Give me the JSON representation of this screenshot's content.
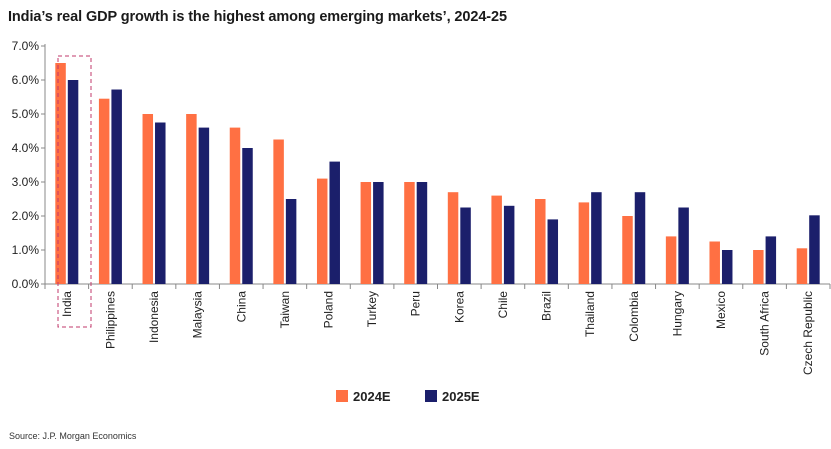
{
  "title": "India’s real GDP growth is the highest among emerging markets’, 2024-25",
  "source": "Source: J.P. Morgan Economics",
  "colors": {
    "series_2024": "#FF7043",
    "series_2025": "#1B1F6B",
    "axis": "#888888",
    "highlight_box": "#C0396B"
  },
  "chart_data": {
    "type": "bar",
    "categories": [
      "India",
      "Philippines",
      "Indonesia",
      "Malaysia",
      "China",
      "Taiwan",
      "Poland",
      "Turkey",
      "Peru",
      "Korea",
      "Chile",
      "Brazil",
      "Thailand",
      "Colombia",
      "Hungary",
      "Mexico",
      "South Africa",
      "Czech Republic"
    ],
    "series": [
      {
        "name": "2024E",
        "values": [
          6.5,
          5.45,
          5.0,
          5.0,
          4.6,
          4.25,
          3.1,
          3.0,
          3.0,
          2.7,
          2.6,
          2.5,
          2.4,
          2.0,
          1.4,
          1.25,
          1.0,
          1.05
        ]
      },
      {
        "name": "2025E",
        "values": [
          6.0,
          5.72,
          4.75,
          4.6,
          4.0,
          2.5,
          3.6,
          3.0,
          3.0,
          2.25,
          2.3,
          1.9,
          2.7,
          2.7,
          2.25,
          1.0,
          1.4,
          2.02
        ]
      }
    ],
    "y_ticks": [
      "0.0%",
      "1.0%",
      "2.0%",
      "3.0%",
      "4.0%",
      "5.0%",
      "6.0%",
      "7.0%"
    ],
    "ylim": [
      0,
      7
    ],
    "xlabel": "",
    "ylabel": "",
    "legend": "bottom",
    "grid": false,
    "highlighted_category": "India"
  }
}
